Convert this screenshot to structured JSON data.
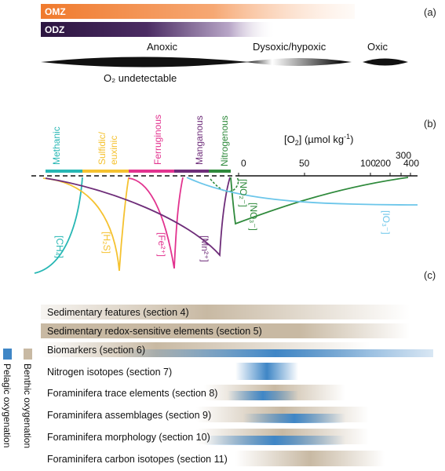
{
  "panel_a": {
    "label": "(a)",
    "omz_label": "OMZ",
    "odz_label": "ODZ",
    "zone_labels": [
      "Anoxic",
      "Dysoxic/hypoxic",
      "Oxic"
    ],
    "undetectable_label": "O₂ undetectable",
    "colors": {
      "omz": "#f07a2d",
      "odz": "#3d1f52"
    }
  },
  "panel_b": {
    "label": "(b)",
    "zones": [
      {
        "label": "Methanic",
        "color": "#27b7b4"
      },
      {
        "label": "Sulfidic/euxinic",
        "line1": "Sulfidic/",
        "line2": "euxinic",
        "color": "#f5c230"
      },
      {
        "label": "Ferruginous",
        "color": "#e2338f"
      },
      {
        "label": "Manganous",
        "color": "#6e2d79"
      },
      {
        "label": "Nitrogenous",
        "color": "#2f8a3c"
      }
    ],
    "axis_title": "[O₂] (µmol kg⁻¹)",
    "axis_title_main": "[O",
    "axis_title_sub": "2",
    "axis_title_rest": "] (µmol kg",
    "axis_title_sup": "-1",
    "axis_title_end": ")",
    "ticks": [
      "0",
      "50",
      "100",
      "200",
      "300",
      "400"
    ],
    "species": [
      {
        "label": "[CH₄]",
        "color": "#27b7b4"
      },
      {
        "label": "[H₂S]",
        "color": "#f5c230"
      },
      {
        "label": "[Fe²⁺]",
        "color": "#e2338f"
      },
      {
        "label": "[Mn²⁺]",
        "color": "#6e2d79"
      },
      {
        "label": "[NO₂⁻]",
        "color": "#2f8a3c"
      },
      {
        "label": "[NO₃⁻]",
        "color": "#2f8a3c"
      },
      {
        "label": "[IO₃⁻]",
        "color": "#6cc6ea"
      }
    ]
  },
  "panel_c": {
    "label": "(c)",
    "legend_benthic": "Benthic oxygenation",
    "legend_pelagic": "Pelagic oxygenation",
    "colors": {
      "benthic": "#c8b9a3",
      "pelagic": "#3f86c6"
    },
    "rows": [
      {
        "label": "Sedimentary features (section 4)"
      },
      {
        "label": "Sedimentary redox-sensitive elements (section 5)"
      },
      {
        "label": "Biomarkers (section 6)"
      },
      {
        "label": "Nitrogen isotopes (section 7)"
      },
      {
        "label": "Foraminifera trace elements (section 8)"
      },
      {
        "label": "Foraminifera assemblages (section 9)"
      },
      {
        "label": "Foraminifera morphology (section 10)"
      },
      {
        "label": "Foraminifera carbon isotopes (section 11)"
      }
    ]
  }
}
